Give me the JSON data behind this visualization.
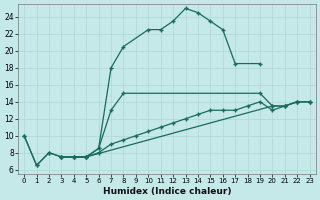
{
  "xlabel": "Humidex (Indice chaleur)",
  "bg_color": "#c5e8e8",
  "grid_color": "#b0d8d0",
  "line_color": "#1a6b5a",
  "xlim": [
    -0.5,
    23.5
  ],
  "ylim": [
    5.5,
    25.5
  ],
  "xticks": [
    0,
    1,
    2,
    3,
    4,
    5,
    6,
    7,
    8,
    9,
    10,
    11,
    12,
    13,
    14,
    15,
    16,
    17,
    18,
    19,
    20,
    21,
    22,
    23
  ],
  "yticks": [
    6,
    8,
    10,
    12,
    14,
    16,
    18,
    20,
    22,
    24
  ],
  "curve1_x": [
    0,
    1,
    2,
    3,
    4,
    5,
    6,
    7,
    8,
    10,
    11,
    12,
    13,
    14,
    15,
    16,
    17,
    19
  ],
  "curve1_y": [
    10,
    6.5,
    8,
    7.5,
    7.5,
    7.5,
    8.5,
    18,
    20.5,
    22.5,
    22.5,
    23.5,
    25,
    24.5,
    23.5,
    22.5,
    18.5,
    18.5
  ],
  "curve2_x": [
    0,
    1,
    2,
    3,
    4,
    5,
    20,
    21,
    22,
    23
  ],
  "curve2_y": [
    10,
    6.5,
    8,
    7.5,
    7.5,
    7.5,
    13.5,
    13.5,
    14,
    14
  ],
  "curve3_x": [
    3,
    4,
    5,
    6,
    7,
    8,
    19,
    20,
    21,
    22,
    23
  ],
  "curve3_y": [
    7.5,
    7.5,
    7.5,
    8.5,
    13,
    15,
    15,
    13.5,
    13.5,
    14,
    14
  ],
  "curve4_x": [
    3,
    4,
    5,
    6,
    7,
    8,
    9,
    10,
    11,
    12,
    13,
    14,
    15,
    16,
    17,
    18,
    19,
    20,
    21,
    22,
    23
  ],
  "curve4_y": [
    7.5,
    7.5,
    7.5,
    8,
    9,
    9.5,
    10,
    10.5,
    11,
    11.5,
    12,
    12.5,
    13,
    13,
    13,
    13.5,
    14,
    13,
    13.5,
    14,
    14
  ]
}
